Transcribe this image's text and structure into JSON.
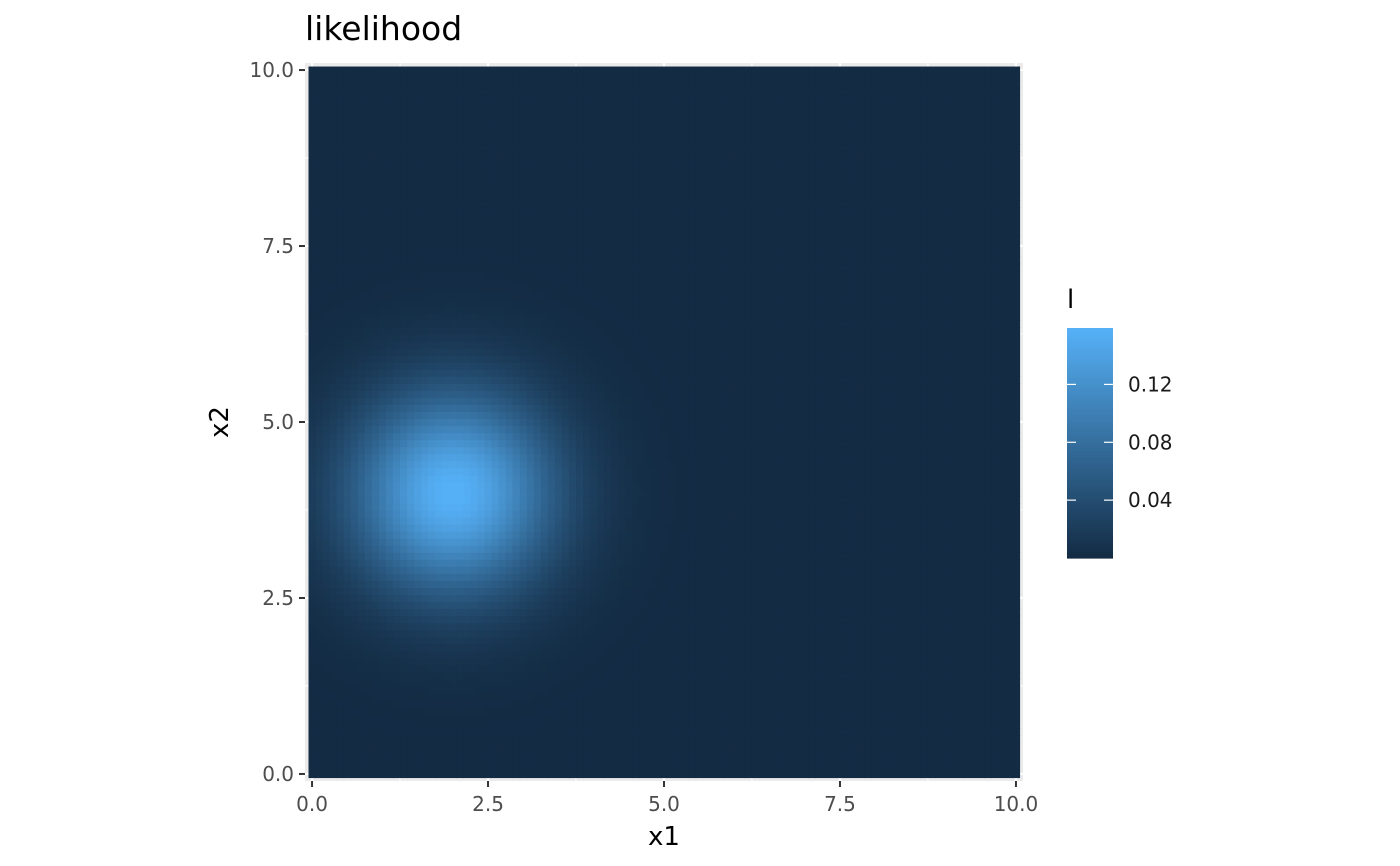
{
  "chart_data": {
    "type": "heatmap",
    "title": "likelihood",
    "xlabel": "x1",
    "ylabel": "x2",
    "xlim": [
      -0.1,
      10.1
    ],
    "ylim": [
      -0.1,
      10.1
    ],
    "x_ticks": [
      0.0,
      2.5,
      5.0,
      7.5,
      10.0
    ],
    "y_ticks": [
      0.0,
      2.5,
      5.0,
      7.5,
      10.0
    ],
    "x_tick_labels": [
      "0.0",
      "2.5",
      "5.0",
      "7.5",
      "10.0"
    ],
    "y_tick_labels": [
      "0.0",
      "2.5",
      "5.0",
      "7.5",
      "10.0"
    ],
    "grid": true,
    "panel_background": "#ebebeb",
    "fill_variable": "l",
    "fill_surface": {
      "form": "gaussian",
      "center": [
        2.0,
        4.0
      ],
      "sd": [
        1.0,
        1.0
      ],
      "peak_value": 0.159
    },
    "x_range": [
      0.0,
      10.0
    ],
    "y_range": [
      0.0,
      10.0
    ],
    "grid_step": 0.1,
    "colorbar": {
      "title": "l",
      "min": 0.0,
      "max": 0.159,
      "breaks": [
        0.04,
        0.08,
        0.12
      ],
      "labels": [
        "0.04",
        "0.08",
        "0.12"
      ],
      "low_color": "#132b43",
      "high_color": "#56b1f7"
    },
    "legend_position": "right"
  }
}
